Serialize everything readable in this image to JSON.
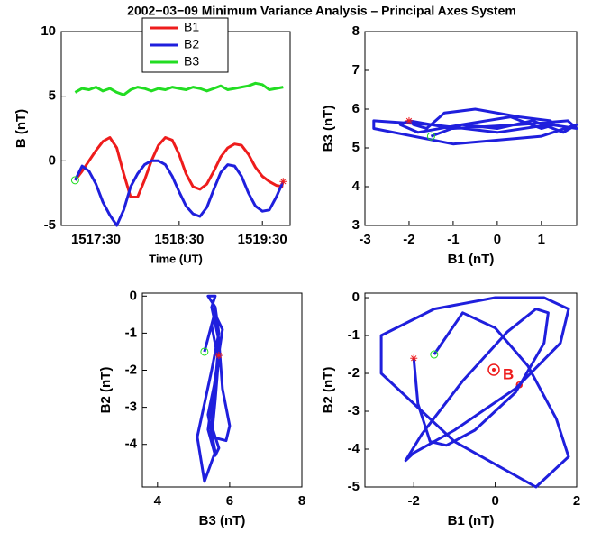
{
  "title": "2002−03−09   Minimum Variance Analysis – Principal Axes System",
  "chart_data": [
    {
      "type": "line",
      "xlabel": "Time (UT)",
      "ylabel": "B (nT)",
      "x": [
        55035,
        55040,
        55045,
        55050,
        55055,
        55060,
        55065,
        55070,
        55075,
        55080,
        55085,
        55090,
        55095,
        55100,
        55105,
        55110,
        55115,
        55120,
        55125,
        55130,
        55135,
        55140,
        55145,
        55150,
        55155,
        55160,
        55165,
        55170,
        55175,
        55180,
        55185
      ],
      "xlim": [
        55025,
        55190
      ],
      "xticks": [
        {
          "value": 55050,
          "label": "1517:30"
        },
        {
          "value": 55110,
          "label": "1518:30"
        },
        {
          "value": 55170,
          "label": "1519:30"
        }
      ],
      "ylim": [
        -5,
        10
      ],
      "yticks": [
        -5,
        0,
        5,
        10
      ],
      "start_color": "#22dd22",
      "end_color": "#ee1c1c",
      "series": [
        {
          "name": "B1",
          "color": "#ee1c1c",
          "values": [
            -1.5,
            -0.8,
            0,
            0.8,
            1.5,
            1.8,
            1.0,
            -1.0,
            -2.8,
            -2.8,
            -1.5,
            0,
            1.2,
            1.8,
            1.6,
            0.5,
            -1.0,
            -2.0,
            -2.2,
            -1.8,
            -0.8,
            0.3,
            1.0,
            1.3,
            1.2,
            0.5,
            -0.5,
            -1.2,
            -1.6,
            -1.9,
            -2.0
          ]
        },
        {
          "name": "B2",
          "color": "#1f1fdd",
          "values": [
            -1.5,
            -0.4,
            -0.8,
            -1.8,
            -3.2,
            -4.2,
            -5.0,
            -3.8,
            -2.0,
            -1.0,
            -0.3,
            0,
            0,
            -0.3,
            -1.2,
            -2.4,
            -3.5,
            -4.1,
            -4.3,
            -3.6,
            -2.2,
            -0.9,
            -0.3,
            -0.4,
            -1.2,
            -2.5,
            -3.5,
            -3.9,
            -3.8,
            -2.8,
            -1.6
          ]
        },
        {
          "name": "B3",
          "color": "#22dd22",
          "values": [
            5.3,
            5.6,
            5.5,
            5.7,
            5.4,
            5.6,
            5.3,
            5.1,
            5.5,
            5.7,
            5.6,
            5.4,
            5.6,
            5.5,
            5.7,
            5.6,
            5.5,
            5.7,
            5.6,
            5.4,
            5.6,
            5.8,
            5.5,
            5.6,
            5.7,
            5.8,
            6.0,
            5.9,
            5.5,
            5.6,
            5.7
          ]
        }
      ]
    },
    {
      "type": "hodogram",
      "xlabel": "B1 (nT)",
      "ylabel": "B3 (nT)",
      "color": "#1f1fdd",
      "start_color": "#22dd22",
      "end_color": "#ee1c1c",
      "xlim": [
        -3,
        1.8
      ],
      "xticks": [
        -3,
        -2,
        -1,
        0,
        1
      ],
      "ylim": [
        3,
        8
      ],
      "yticks": [
        3,
        4,
        5,
        6,
        7,
        8
      ],
      "x": [
        -1.5,
        -0.8,
        0,
        0.8,
        1.5,
        1.8,
        1.0,
        -1.0,
        -2.8,
        -2.8,
        -1.5,
        0,
        1.2,
        1.8,
        1.6,
        0.5,
        -1.0,
        -2.0,
        -2.2,
        -1.8,
        -0.8,
        0.3,
        1.0,
        1.3,
        1.2,
        0.5,
        -0.5,
        -1.2,
        -1.6,
        -1.9,
        -2.0
      ],
      "values": [
        5.3,
        5.6,
        5.5,
        5.7,
        5.4,
        5.6,
        5.3,
        5.1,
        5.5,
        5.7,
        5.6,
        5.4,
        5.6,
        5.5,
        5.7,
        5.6,
        5.5,
        5.7,
        5.6,
        5.4,
        5.6,
        5.8,
        5.5,
        5.6,
        5.7,
        5.8,
        6.0,
        5.9,
        5.5,
        5.6,
        5.7
      ]
    },
    {
      "type": "hodogram",
      "xlabel": "B3 (nT)",
      "ylabel": "B2 (nT)",
      "color": "#1f1fdd",
      "start_color": "#22dd22",
      "end_color": "#ee1c1c",
      "xlim": [
        3.58,
        8
      ],
      "xticks": [
        4,
        6,
        8
      ],
      "ylim": [
        -5.15,
        0.08
      ],
      "yticks": [
        -4,
        -3,
        -2,
        -1,
        0
      ],
      "x": [
        5.3,
        5.6,
        5.5,
        5.7,
        5.4,
        5.6,
        5.3,
        5.1,
        5.5,
        5.7,
        5.6,
        5.4,
        5.6,
        5.5,
        5.7,
        5.6,
        5.5,
        5.7,
        5.6,
        5.4,
        5.6,
        5.8,
        5.5,
        5.6,
        5.7,
        5.8,
        6.0,
        5.9,
        5.5,
        5.6,
        5.7
      ],
      "values": [
        -1.5,
        -0.4,
        -0.8,
        -1.8,
        -3.2,
        -4.2,
        -5.0,
        -3.8,
        -2.0,
        -1.0,
        -0.3,
        0,
        0,
        -0.3,
        -1.2,
        -2.4,
        -3.5,
        -4.1,
        -4.3,
        -3.6,
        -2.2,
        -0.9,
        -0.3,
        -0.4,
        -1.2,
        -2.5,
        -3.5,
        -3.9,
        -3.8,
        -2.8,
        -1.6
      ]
    },
    {
      "type": "hodogram",
      "xlabel": "B1 (nT)",
      "ylabel": "B2 (nT)",
      "color": "#1f1fdd",
      "start_color": "#22dd22",
      "end_color": "#ee1c1c",
      "annotation": "B",
      "annotation_subscript": "o",
      "xlim": [
        -3.2,
        2
      ],
      "xticks": [
        -2,
        0,
        2
      ],
      "ylim": [
        -5,
        0.12
      ],
      "yticks": [
        -5,
        -4,
        -3,
        -2,
        -1,
        0
      ],
      "x": [
        -1.5,
        -0.8,
        0,
        0.8,
        1.5,
        1.8,
        1.0,
        -1.0,
        -2.8,
        -2.8,
        -1.5,
        0,
        1.2,
        1.8,
        1.6,
        0.5,
        -1.0,
        -2.0,
        -2.2,
        -1.8,
        -0.8,
        0.3,
        1.0,
        1.3,
        1.2,
        0.5,
        -0.5,
        -1.2,
        -1.6,
        -1.9,
        -2.0
      ],
      "values": [
        -1.5,
        -0.4,
        -0.8,
        -1.8,
        -3.2,
        -4.2,
        -5.0,
        -3.8,
        -2.0,
        -1.0,
        -0.3,
        0,
        0,
        -0.3,
        -1.2,
        -2.4,
        -3.5,
        -4.1,
        -4.3,
        -3.6,
        -2.2,
        -0.9,
        -0.3,
        -0.4,
        -1.2,
        -2.5,
        -3.5,
        -3.9,
        -3.8,
        -2.8,
        -1.6
      ]
    }
  ]
}
